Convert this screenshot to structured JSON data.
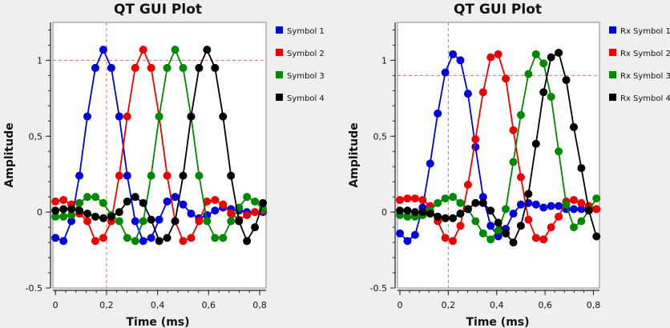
{
  "chart_data": [
    {
      "type": "line",
      "title": "QT GUI Plot",
      "xlabel": "Time (ms)",
      "ylabel": "Amplitude",
      "xlim": [
        -0.01,
        0.825
      ],
      "ylim": [
        -0.5,
        1.25
      ],
      "xticks": [
        "0",
        "0,2",
        "0,4",
        "0,6",
        "0,8"
      ],
      "xtick_values": [
        0,
        0.2,
        0.4,
        0.6,
        0.8
      ],
      "yticks": [
        "-0.5",
        "0",
        "0,5",
        "1"
      ],
      "ytick_values": [
        -0.5,
        0,
        0.5,
        1
      ],
      "marker_x": 0.2,
      "marker_y": 1.0,
      "legend_position": "right",
      "x": [
        0,
        0.0313,
        0.0625,
        0.0938,
        0.125,
        0.1563,
        0.1875,
        0.2188,
        0.25,
        0.2813,
        0.3125,
        0.3438,
        0.375,
        0.4063,
        0.4375,
        0.4688,
        0.5,
        0.5313,
        0.5625,
        0.5938,
        0.625,
        0.6563,
        0.6875,
        0.7188,
        0.75,
        0.7813,
        0.8125
      ],
      "series": [
        {
          "name": "Symbol 1",
          "color": "#0000dd",
          "values": [
            -0.17,
            -0.19,
            -0.06,
            0.24,
            0.63,
            0.95,
            1.07,
            0.95,
            0.63,
            0.24,
            -0.06,
            -0.19,
            -0.17,
            -0.05,
            0.07,
            0.1,
            0.05,
            -0.01,
            -0.04,
            -0.02,
            0.01,
            0.03,
            0.02,
            0.01,
            0.0,
            0.0,
            0.0
          ]
        },
        {
          "name": "Symbol 2",
          "color": "#ee0000",
          "values": [
            0.07,
            0.08,
            0.05,
            -0.01,
            -0.06,
            -0.19,
            -0.17,
            -0.06,
            0.24,
            0.63,
            0.95,
            1.07,
            0.95,
            0.63,
            0.24,
            -0.06,
            -0.19,
            -0.17,
            -0.06,
            0.07,
            0.08,
            0.05,
            -0.01,
            -0.05,
            -0.02,
            0.0,
            0.01
          ]
        },
        {
          "name": "Symbol 3",
          "color": "#008800",
          "values": [
            -0.03,
            -0.03,
            -0.02,
            0.06,
            0.1,
            0.1,
            0.06,
            -0.02,
            -0.06,
            -0.17,
            -0.19,
            -0.06,
            0.24,
            0.63,
            0.95,
            1.07,
            0.95,
            0.63,
            0.24,
            -0.06,
            -0.17,
            -0.17,
            -0.06,
            0.03,
            0.1,
            0.07,
            0.02
          ]
        },
        {
          "name": "Symbol 4",
          "color": "#000000",
          "values": [
            0.01,
            0.02,
            0.02,
            0.01,
            -0.01,
            -0.03,
            -0.04,
            -0.03,
            0.0,
            0.07,
            0.1,
            0.06,
            -0.05,
            -0.19,
            -0.17,
            -0.06,
            0.24,
            0.63,
            0.95,
            1.07,
            0.95,
            0.63,
            0.24,
            -0.06,
            -0.19,
            -0.1,
            0.06
          ]
        }
      ]
    },
    {
      "type": "line",
      "title": "QT GUI Plot",
      "xlabel": "Time (ms)",
      "ylabel": "Amplitude",
      "xlim": [
        -0.01,
        0.825
      ],
      "ylim": [
        -0.5,
        1.25
      ],
      "xticks": [
        "0",
        "0,2",
        "0,4",
        "0,6",
        "0,8"
      ],
      "xtick_values": [
        0,
        0.2,
        0.4,
        0.6,
        0.8
      ],
      "yticks": [
        "-0.5",
        "0",
        "0,5",
        "1"
      ],
      "ytick_values": [
        -0.5,
        0,
        0.5,
        1
      ],
      "marker_x": 0.2,
      "marker_y": 0.9,
      "legend_position": "right",
      "x": [
        0,
        0.0313,
        0.0625,
        0.0938,
        0.125,
        0.1563,
        0.1875,
        0.2188,
        0.25,
        0.2813,
        0.3125,
        0.3438,
        0.375,
        0.4063,
        0.4375,
        0.4688,
        0.5,
        0.5313,
        0.5625,
        0.5938,
        0.625,
        0.6563,
        0.6875,
        0.7188,
        0.75,
        0.7813,
        0.8125
      ],
      "series": [
        {
          "name": "Rx Symbol 1",
          "color": "#0000dd",
          "values": [
            -0.14,
            -0.19,
            -0.15,
            0.03,
            0.32,
            0.65,
            0.92,
            1.04,
            1.0,
            0.78,
            0.43,
            0.1,
            -0.09,
            -0.16,
            -0.11,
            -0.01,
            0.05,
            0.06,
            0.05,
            0.03,
            0.04,
            0.04,
            0.02,
            0.02,
            0.02,
            0.02,
            0.02
          ]
        },
        {
          "name": "Rx Symbol 2",
          "color": "#ee0000",
          "values": [
            0.08,
            0.09,
            0.09,
            0.08,
            0.04,
            -0.06,
            -0.17,
            -0.19,
            -0.09,
            0.18,
            0.48,
            0.79,
            1.02,
            1.04,
            0.88,
            0.54,
            0.23,
            -0.05,
            -0.17,
            -0.18,
            -0.1,
            -0.03,
            0.07,
            0.08,
            0.06,
            0.04,
            0.02
          ]
        },
        {
          "name": "Rx Symbol 3",
          "color": "#008800",
          "values": [
            -0.02,
            -0.03,
            -0.03,
            -0.02,
            0.01,
            0.06,
            0.09,
            0.1,
            0.06,
            0.02,
            -0.06,
            -0.14,
            -0.18,
            -0.12,
            0.02,
            0.33,
            0.64,
            0.91,
            1.04,
            0.98,
            0.76,
            0.4,
            0.05,
            -0.1,
            -0.06,
            0.01,
            0.09
          ]
        },
        {
          "name": "Rx Symbol 4",
          "color": "#000000",
          "values": [
            0.01,
            0.01,
            0.0,
            0.0,
            -0.01,
            -0.03,
            -0.04,
            -0.04,
            -0.01,
            0.02,
            0.06,
            0.06,
            0.01,
            -0.07,
            -0.14,
            -0.2,
            -0.09,
            0.12,
            0.45,
            0.79,
            1.02,
            1.05,
            0.87,
            0.56,
            0.29,
            0.01,
            -0.16
          ]
        }
      ]
    }
  ]
}
